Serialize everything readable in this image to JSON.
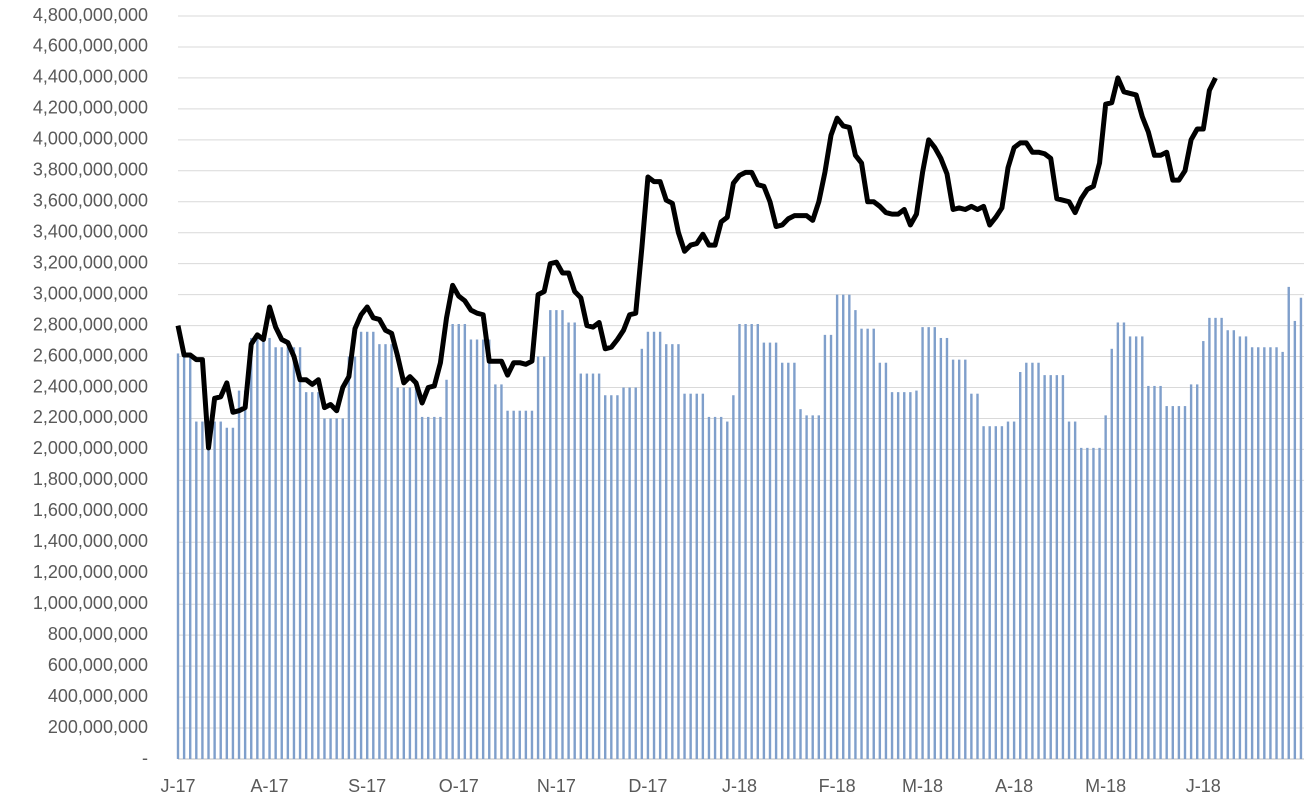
{
  "chart_data": {
    "type": "combo",
    "categories": [
      "J-17",
      null,
      null,
      null,
      null,
      null,
      null,
      null,
      null,
      null,
      null,
      null,
      null,
      null,
      null,
      "A-17",
      null,
      null,
      null,
      null,
      null,
      null,
      null,
      null,
      null,
      null,
      null,
      null,
      null,
      null,
      null,
      "S-17",
      null,
      null,
      null,
      null,
      null,
      null,
      null,
      null,
      null,
      null,
      null,
      null,
      null,
      null,
      "O-17",
      null,
      null,
      null,
      null,
      null,
      null,
      null,
      null,
      null,
      null,
      null,
      null,
      null,
      null,
      null,
      "N-17",
      null,
      null,
      null,
      null,
      null,
      null,
      null,
      null,
      null,
      null,
      null,
      null,
      null,
      null,
      "D-17",
      null,
      null,
      null,
      null,
      null,
      null,
      null,
      null,
      null,
      null,
      null,
      null,
      null,
      null,
      "J-18",
      null,
      null,
      null,
      null,
      null,
      null,
      null,
      null,
      null,
      null,
      null,
      null,
      null,
      null,
      null,
      "F-18",
      null,
      null,
      null,
      null,
      null,
      null,
      null,
      null,
      null,
      null,
      null,
      null,
      null,
      "M-18",
      null,
      null,
      null,
      null,
      null,
      null,
      null,
      null,
      null,
      null,
      null,
      null,
      null,
      null,
      "A-18",
      null,
      null,
      null,
      null,
      null,
      null,
      null,
      null,
      null,
      null,
      null,
      null,
      null,
      null,
      "M-18",
      null,
      null,
      null,
      null,
      null,
      null,
      null,
      null,
      null,
      null,
      null,
      null,
      null,
      null,
      null,
      "J-18",
      null,
      null,
      null,
      null,
      null,
      null,
      null,
      null,
      null,
      null,
      null,
      null,
      null,
      null,
      null,
      null
    ],
    "series": [
      {
        "type": "bar",
        "color": "#7f9fcb",
        "values": [
          2620000000,
          2620000000,
          2620000000,
          2180000000,
          2180000000,
          2180000000,
          2180000000,
          2180000000,
          2140000000,
          2140000000,
          2380000000,
          2380000000,
          2720000000,
          2720000000,
          2720000000,
          2720000000,
          2660000000,
          2660000000,
          2660000000,
          2660000000,
          2660000000,
          2370000000,
          2370000000,
          2370000000,
          2200000000,
          2200000000,
          2200000000,
          2200000000,
          2600000000,
          2600000000,
          2760000000,
          2760000000,
          2760000000,
          2680000000,
          2680000000,
          2680000000,
          2400000000,
          2400000000,
          2400000000,
          2400000000,
          2210000000,
          2210000000,
          2210000000,
          2210000000,
          2450000000,
          2810000000,
          2810000000,
          2810000000,
          2710000000,
          2710000000,
          2710000000,
          2710000000,
          2420000000,
          2420000000,
          2250000000,
          2250000000,
          2250000000,
          2250000000,
          2250000000,
          2600000000,
          2600000000,
          2900000000,
          2900000000,
          2900000000,
          2820000000,
          2820000000,
          2490000000,
          2490000000,
          2490000000,
          2490000000,
          2350000000,
          2350000000,
          2350000000,
          2400000000,
          2400000000,
          2400000000,
          2650000000,
          2760000000,
          2760000000,
          2760000000,
          2680000000,
          2680000000,
          2680000000,
          2360000000,
          2360000000,
          2360000000,
          2360000000,
          2210000000,
          2210000000,
          2210000000,
          2180000000,
          2350000000,
          2810000000,
          2810000000,
          2810000000,
          2810000000,
          2690000000,
          2690000000,
          2690000000,
          2560000000,
          2560000000,
          2560000000,
          2260000000,
          2220000000,
          2220000000,
          2220000000,
          2740000000,
          2740000000,
          3000000000,
          3000000000,
          3000000000,
          2900000000,
          2780000000,
          2780000000,
          2780000000,
          2560000000,
          2560000000,
          2370000000,
          2370000000,
          2370000000,
          2370000000,
          2380000000,
          2790000000,
          2790000000,
          2790000000,
          2720000000,
          2720000000,
          2580000000,
          2580000000,
          2580000000,
          2360000000,
          2360000000,
          2150000000,
          2150000000,
          2150000000,
          2150000000,
          2180000000,
          2180000000,
          2500000000,
          2560000000,
          2560000000,
          2560000000,
          2480000000,
          2480000000,
          2480000000,
          2480000000,
          2180000000,
          2180000000,
          2010000000,
          2010000000,
          2010000000,
          2010000000,
          2220000000,
          2650000000,
          2820000000,
          2820000000,
          2730000000,
          2730000000,
          2730000000,
          2410000000,
          2410000000,
          2410000000,
          2280000000,
          2280000000,
          2280000000,
          2280000000,
          2420000000,
          2420000000,
          2700000000,
          2850000000,
          2850000000,
          2850000000,
          2770000000,
          2770000000,
          2730000000,
          2730000000,
          2660000000,
          2660000000,
          2660000000,
          2660000000,
          2660000000,
          2630000000,
          3050000000,
          2830000000,
          2980000000
        ]
      },
      {
        "type": "line",
        "color": "#000000",
        "values": [
          2800000000,
          2610000000,
          2610000000,
          2580000000,
          2580000000,
          2010000000,
          2330000000,
          2340000000,
          2430000000,
          2240000000,
          2250000000,
          2270000000,
          2680000000,
          2740000000,
          2710000000,
          2920000000,
          2790000000,
          2710000000,
          2690000000,
          2600000000,
          2450000000,
          2450000000,
          2420000000,
          2450000000,
          2270000000,
          2290000000,
          2250000000,
          2400000000,
          2470000000,
          2780000000,
          2870000000,
          2920000000,
          2850000000,
          2840000000,
          2770000000,
          2750000000,
          2600000000,
          2430000000,
          2470000000,
          2430000000,
          2300000000,
          2400000000,
          2410000000,
          2560000000,
          2850000000,
          3060000000,
          2990000000,
          2960000000,
          2900000000,
          2880000000,
          2870000000,
          2570000000,
          2570000000,
          2570000000,
          2480000000,
          2560000000,
          2560000000,
          2550000000,
          2570000000,
          3000000000,
          3020000000,
          3200000000,
          3210000000,
          3140000000,
          3140000000,
          3020000000,
          2980000000,
          2800000000,
          2790000000,
          2820000000,
          2650000000,
          2660000000,
          2710000000,
          2770000000,
          2870000000,
          2880000000,
          3300000000,
          3760000000,
          3730000000,
          3730000000,
          3610000000,
          3590000000,
          3400000000,
          3280000000,
          3320000000,
          3330000000,
          3390000000,
          3320000000,
          3320000000,
          3470000000,
          3500000000,
          3720000000,
          3770000000,
          3790000000,
          3790000000,
          3710000000,
          3700000000,
          3600000000,
          3440000000,
          3450000000,
          3490000000,
          3510000000,
          3510000000,
          3510000000,
          3480000000,
          3600000000,
          3790000000,
          4030000000,
          4140000000,
          4090000000,
          4080000000,
          3900000000,
          3850000000,
          3600000000,
          3600000000,
          3570000000,
          3530000000,
          3520000000,
          3520000000,
          3550000000,
          3450000000,
          3520000000,
          3790000000,
          4000000000,
          3950000000,
          3880000000,
          3780000000,
          3550000000,
          3560000000,
          3550000000,
          3570000000,
          3550000000,
          3570000000,
          3450000000,
          3500000000,
          3560000000,
          3820000000,
          3950000000,
          3980000000,
          3980000000,
          3920000000,
          3920000000,
          3910000000,
          3880000000,
          3620000000,
          3610000000,
          3600000000,
          3530000000,
          3620000000,
          3680000000,
          3700000000,
          3850000000,
          4230000000,
          4240000000,
          4400000000,
          4310000000,
          4300000000,
          4290000000,
          4150000000,
          4050000000,
          3900000000,
          3900000000,
          3920000000,
          3740000000,
          3740000000,
          3800000000,
          4000000000,
          4070000000,
          4070000000,
          4320000000,
          4400000000,
          null,
          null,
          null,
          null,
          null,
          null,
          null,
          null,
          null,
          null,
          null,
          null,
          null,
          null
        ]
      }
    ],
    "ylim": [
      0,
      4800000000
    ],
    "yticks": [
      {
        "value": 0,
        "label": "-"
      },
      {
        "value": 200000000,
        "label": "200,000,000"
      },
      {
        "value": 400000000,
        "label": "400,000,000"
      },
      {
        "value": 600000000,
        "label": "600,000,000"
      },
      {
        "value": 800000000,
        "label": "800,000,000"
      },
      {
        "value": 1000000000,
        "label": "1,000,000,000"
      },
      {
        "value": 1200000000,
        "label": "1,200,000,000"
      },
      {
        "value": 1400000000,
        "label": "1,400,000,000"
      },
      {
        "value": 1600000000,
        "label": "1,600,000,000"
      },
      {
        "value": 1800000000,
        "label": "1,800,000,000"
      },
      {
        "value": 2000000000,
        "label": "2,000,000,000"
      },
      {
        "value": 2200000000,
        "label": "2,200,000,000"
      },
      {
        "value": 2400000000,
        "label": "2,400,000,000"
      },
      {
        "value": 2600000000,
        "label": "2,600,000,000"
      },
      {
        "value": 2800000000,
        "label": "2,800,000,000"
      },
      {
        "value": 3000000000,
        "label": "3,000,000,000"
      },
      {
        "value": 3200000000,
        "label": "3,200,000,000"
      },
      {
        "value": 3400000000,
        "label": "3,400,000,000"
      },
      {
        "value": 3600000000,
        "label": "3,600,000,000"
      },
      {
        "value": 3800000000,
        "label": "3,800,000,000"
      },
      {
        "value": 4000000000,
        "label": "4,000,000,000"
      },
      {
        "value": 4200000000,
        "label": "4,200,000,000"
      },
      {
        "value": 4400000000,
        "label": "4,400,000,000"
      },
      {
        "value": 4600000000,
        "label": "4,600,000,000"
      },
      {
        "value": 4800000000,
        "label": "4,800,000,000"
      }
    ],
    "grid": true
  }
}
